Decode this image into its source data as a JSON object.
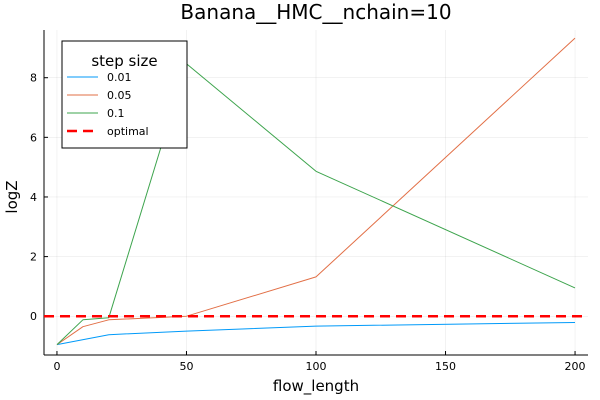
{
  "chart_data": {
    "type": "line",
    "title": "Banana__HMC__nchain=10",
    "xlabel": "flow_length",
    "ylabel": "logZ",
    "xlim": [
      -5,
      205
    ],
    "ylim": [
      -1.3,
      9.6
    ],
    "xticks": [
      0,
      50,
      100,
      150,
      200
    ],
    "yticks": [
      0,
      2,
      4,
      6,
      8
    ],
    "grid": true,
    "legend": {
      "title": "step size",
      "position": "top-left"
    },
    "series": [
      {
        "name": "0.01",
        "color": "#009af9",
        "style": "solid",
        "x": [
          0,
          20,
          50,
          100,
          200
        ],
        "y": [
          -0.95,
          -0.62,
          -0.5,
          -0.33,
          -0.21
        ]
      },
      {
        "name": "0.05",
        "color": "#e26f46",
        "style": "solid",
        "x": [
          0,
          10,
          20,
          50,
          100,
          200
        ],
        "y": [
          -0.95,
          -0.35,
          -0.12,
          0.0,
          1.32,
          9.33
        ]
      },
      {
        "name": "0.1",
        "color": "#3da44d",
        "style": "solid",
        "x": [
          0,
          10,
          20,
          50,
          100,
          200
        ],
        "y": [
          -0.95,
          -0.12,
          -0.05,
          8.47,
          4.86,
          0.95
        ]
      },
      {
        "name": "optimal",
        "color": "#ff0000",
        "style": "dashed",
        "x": [
          -5,
          205
        ],
        "y": [
          0,
          0
        ]
      }
    ]
  }
}
